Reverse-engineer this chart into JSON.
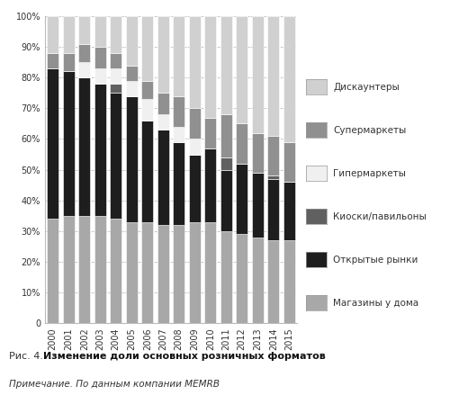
{
  "years": [
    "2000",
    "2001",
    "2002",
    "2003",
    "2004",
    "2005",
    "2006",
    "2007",
    "2008",
    "2009",
    "2010",
    "2011",
    "2012",
    "2013",
    "2014",
    "2015"
  ],
  "categories": [
    "Магазины у дома",
    "Открытые рынки",
    "Киоски/павильоны",
    "Гипермаркеты",
    "Супермаркеты",
    "Дискаунтеры"
  ],
  "colors": [
    "#a8a8a8",
    "#1e1e1e",
    "#606060",
    "#f0f0f0",
    "#909090",
    "#d0d0d0"
  ],
  "data": {
    "Магазины у дома": [
      34,
      35,
      35,
      35,
      34,
      33,
      33,
      32,
      32,
      33,
      33,
      30,
      29,
      28,
      27,
      27
    ],
    "Открытые рынки": [
      49,
      47,
      45,
      43,
      41,
      41,
      33,
      31,
      27,
      22,
      24,
      20,
      23,
      21,
      20,
      19
    ],
    "Киоски/павильоны": [
      0,
      0,
      0,
      0,
      3,
      0,
      0,
      0,
      0,
      0,
      0,
      4,
      0,
      0,
      1,
      0
    ],
    "Гипермаркеты": [
      0,
      0,
      5,
      5,
      5,
      5,
      7,
      5,
      5,
      5,
      0,
      0,
      0,
      0,
      0,
      0
    ],
    "Супермаркеты": [
      5,
      6,
      6,
      7,
      5,
      5,
      6,
      7,
      10,
      10,
      10,
      14,
      13,
      13,
      13,
      13
    ],
    "Дискаунтеры": [
      12,
      12,
      9,
      10,
      12,
      16,
      21,
      25,
      26,
      30,
      33,
      32,
      35,
      38,
      39,
      41
    ]
  },
  "title_prefix": "Рис. 4.",
  "title_bold": " Изменение доли основных розничных форматов",
  "note": "Примечание. По данным компании MEMRB",
  "background_color": "#ffffff"
}
